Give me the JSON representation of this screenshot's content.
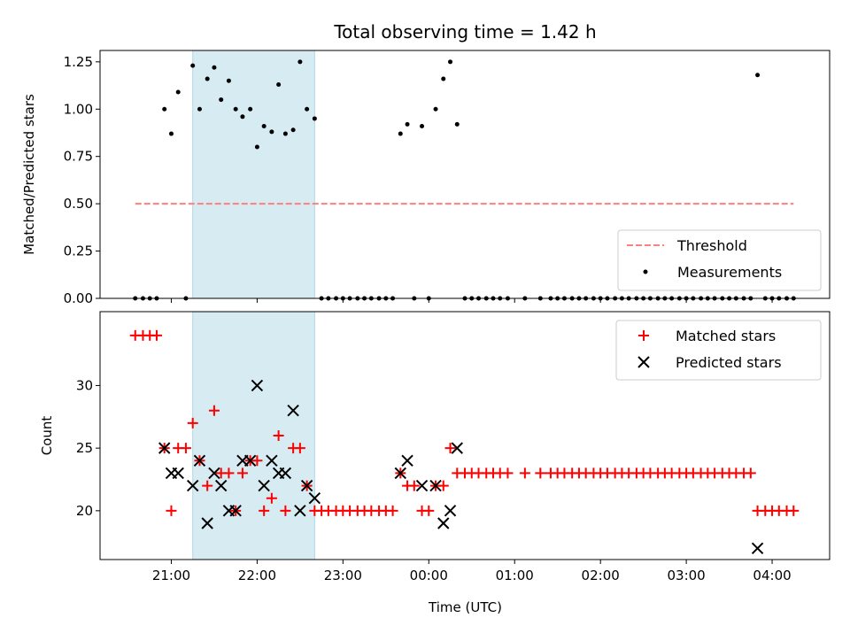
{
  "chart_data": {
    "title": "Total observing time = 1.42 h",
    "xlabel": "Time (UTC)",
    "x_unit": "hours relative to 00:00 UTC",
    "xlim": [
      -3.83,
      4.67
    ],
    "xticks": [
      {
        "value": -3,
        "label": "21:00"
      },
      {
        "value": -2,
        "label": "22:00"
      },
      {
        "value": -1,
        "label": "23:00"
      },
      {
        "value": 0,
        "label": "00:00"
      },
      {
        "value": 1,
        "label": "01:00"
      },
      {
        "value": 2,
        "label": "02:00"
      },
      {
        "value": 3,
        "label": "03:00"
      },
      {
        "value": 4,
        "label": "04:00"
      }
    ],
    "shaded_span": {
      "x0": -2.75,
      "x1": -1.33,
      "color": "#add8e6"
    },
    "top": {
      "type": "scatter",
      "ylabel": "Matched/Predicted stars",
      "ylim": [
        0,
        1.31
      ],
      "yticks": [
        "0.00",
        "0.25",
        "0.50",
        "0.75",
        "1.00",
        "1.25"
      ],
      "threshold": {
        "name": "Threshold",
        "y": 0.5,
        "x0": -3.42,
        "x1": 4.25,
        "color": "#ff7f7f"
      },
      "measurements": {
        "name": "Measurements",
        "color": "#000000",
        "points": [
          [
            -3.42,
            0
          ],
          [
            -3.33,
            0
          ],
          [
            -3.25,
            0
          ],
          [
            -3.17,
            0
          ],
          [
            -3.08,
            1.0
          ],
          [
            -3.0,
            0.87
          ],
          [
            -2.92,
            1.09
          ],
          [
            -2.83,
            0
          ],
          [
            -2.75,
            1.23
          ],
          [
            -2.67,
            1.0
          ],
          [
            -2.58,
            1.16
          ],
          [
            -2.5,
            1.22
          ],
          [
            -2.42,
            1.05
          ],
          [
            -2.33,
            1.15
          ],
          [
            -2.25,
            1.0
          ],
          [
            -2.17,
            0.96
          ],
          [
            -2.08,
            1.0
          ],
          [
            -2.0,
            0.8
          ],
          [
            -1.92,
            0.91
          ],
          [
            -1.83,
            0.88
          ],
          [
            -1.75,
            1.13
          ],
          [
            -1.67,
            0.87
          ],
          [
            -1.58,
            0.89
          ],
          [
            -1.5,
            1.25
          ],
          [
            -1.42,
            1.0
          ],
          [
            -1.33,
            0.95
          ],
          [
            -1.25,
            0
          ],
          [
            -1.17,
            0
          ],
          [
            -1.08,
            0
          ],
          [
            -1.0,
            0
          ],
          [
            -0.92,
            0
          ],
          [
            -0.83,
            0
          ],
          [
            -0.75,
            0
          ],
          [
            -0.67,
            0
          ],
          [
            -0.58,
            0
          ],
          [
            -0.5,
            0
          ],
          [
            -0.42,
            0
          ],
          [
            -0.33,
            0.87
          ],
          [
            -0.25,
            0.92
          ],
          [
            -0.17,
            0
          ],
          [
            -0.08,
            0.91
          ],
          [
            0.0,
            0
          ],
          [
            0.08,
            1.0
          ],
          [
            0.17,
            1.16
          ],
          [
            0.25,
            1.25
          ],
          [
            0.33,
            0.92
          ],
          [
            0.42,
            0
          ],
          [
            0.5,
            0
          ],
          [
            0.58,
            0
          ],
          [
            0.67,
            0
          ],
          [
            0.75,
            0
          ],
          [
            0.83,
            0
          ],
          [
            0.92,
            0
          ],
          [
            1.12,
            0
          ],
          [
            1.3,
            0
          ],
          [
            1.42,
            0
          ],
          [
            1.5,
            0
          ],
          [
            1.58,
            0
          ],
          [
            1.67,
            0
          ],
          [
            1.75,
            0
          ],
          [
            1.83,
            0
          ],
          [
            1.92,
            0
          ],
          [
            2.0,
            0
          ],
          [
            2.08,
            0
          ],
          [
            2.17,
            0
          ],
          [
            2.25,
            0
          ],
          [
            2.33,
            0
          ],
          [
            2.42,
            0
          ],
          [
            2.5,
            0
          ],
          [
            2.58,
            0
          ],
          [
            2.67,
            0
          ],
          [
            2.75,
            0
          ],
          [
            2.83,
            0
          ],
          [
            2.92,
            0
          ],
          [
            3.0,
            0
          ],
          [
            3.08,
            0
          ],
          [
            3.17,
            0
          ],
          [
            3.25,
            0
          ],
          [
            3.33,
            0
          ],
          [
            3.42,
            0
          ],
          [
            3.5,
            0
          ],
          [
            3.58,
            0
          ],
          [
            3.67,
            0
          ],
          [
            3.75,
            0
          ],
          [
            3.83,
            1.18
          ],
          [
            3.92,
            0
          ],
          [
            4.0,
            0
          ],
          [
            4.08,
            0
          ],
          [
            4.17,
            0
          ],
          [
            4.25,
            0
          ]
        ]
      },
      "legend": {
        "position": "lower right",
        "entries": [
          "Threshold",
          "Measurements"
        ]
      }
    },
    "bottom": {
      "type": "scatter",
      "ylabel": "Count",
      "ylim": [
        16.1,
        35.9
      ],
      "yticks": [
        {
          "value": 20,
          "label": "20"
        },
        {
          "value": 25,
          "label": "25"
        },
        {
          "value": 30,
          "label": "30"
        }
      ],
      "matched": {
        "name": "Matched stars",
        "color": "#ff0000",
        "points": [
          [
            -3.42,
            34
          ],
          [
            -3.33,
            34
          ],
          [
            -3.25,
            34
          ],
          [
            -3.17,
            34
          ],
          [
            -3.08,
            25
          ],
          [
            -3.0,
            20
          ],
          [
            -2.92,
            25
          ],
          [
            -2.83,
            25
          ],
          [
            -2.75,
            27
          ],
          [
            -2.67,
            24
          ],
          [
            -2.58,
            22
          ],
          [
            -2.5,
            28
          ],
          [
            -2.42,
            23
          ],
          [
            -2.33,
            23
          ],
          [
            -2.25,
            20
          ],
          [
            -2.17,
            23
          ],
          [
            -2.08,
            24
          ],
          [
            -2.0,
            24
          ],
          [
            -1.92,
            20
          ],
          [
            -1.83,
            21
          ],
          [
            -1.75,
            26
          ],
          [
            -1.67,
            20
          ],
          [
            -1.58,
            25
          ],
          [
            -1.5,
            25
          ],
          [
            -1.42,
            22
          ],
          [
            -1.33,
            20
          ],
          [
            -1.25,
            20
          ],
          [
            -1.17,
            20
          ],
          [
            -1.08,
            20
          ],
          [
            -1.0,
            20
          ],
          [
            -0.92,
            20
          ],
          [
            -0.83,
            20
          ],
          [
            -0.75,
            20
          ],
          [
            -0.67,
            20
          ],
          [
            -0.58,
            20
          ],
          [
            -0.5,
            20
          ],
          [
            -0.42,
            20
          ],
          [
            -0.33,
            23
          ],
          [
            -0.25,
            22
          ],
          [
            -0.17,
            22
          ],
          [
            -0.08,
            20
          ],
          [
            0.0,
            20
          ],
          [
            0.08,
            22
          ],
          [
            0.17,
            22
          ],
          [
            0.25,
            25
          ],
          [
            0.33,
            23
          ],
          [
            0.42,
            23
          ],
          [
            0.5,
            23
          ],
          [
            0.58,
            23
          ],
          [
            0.67,
            23
          ],
          [
            0.75,
            23
          ],
          [
            0.83,
            23
          ],
          [
            0.92,
            23
          ],
          [
            1.12,
            23
          ],
          [
            1.3,
            23
          ],
          [
            1.42,
            23
          ],
          [
            1.5,
            23
          ],
          [
            1.58,
            23
          ],
          [
            1.67,
            23
          ],
          [
            1.75,
            23
          ],
          [
            1.83,
            23
          ],
          [
            1.92,
            23
          ],
          [
            2.0,
            23
          ],
          [
            2.08,
            23
          ],
          [
            2.17,
            23
          ],
          [
            2.25,
            23
          ],
          [
            2.33,
            23
          ],
          [
            2.42,
            23
          ],
          [
            2.5,
            23
          ],
          [
            2.58,
            23
          ],
          [
            2.67,
            23
          ],
          [
            2.75,
            23
          ],
          [
            2.83,
            23
          ],
          [
            2.92,
            23
          ],
          [
            3.0,
            23
          ],
          [
            3.08,
            23
          ],
          [
            3.17,
            23
          ],
          [
            3.25,
            23
          ],
          [
            3.33,
            23
          ],
          [
            3.42,
            23
          ],
          [
            3.5,
            23
          ],
          [
            3.58,
            23
          ],
          [
            3.67,
            23
          ],
          [
            3.75,
            23
          ],
          [
            3.83,
            20
          ],
          [
            3.92,
            20
          ],
          [
            4.0,
            20
          ],
          [
            4.08,
            20
          ],
          [
            4.17,
            20
          ],
          [
            4.25,
            20
          ]
        ]
      },
      "predicted": {
        "name": "Predicted stars",
        "color": "#000000",
        "points": [
          [
            -3.08,
            25
          ],
          [
            -3.0,
            23
          ],
          [
            -2.92,
            23
          ],
          [
            -2.75,
            22
          ],
          [
            -2.67,
            24
          ],
          [
            -2.58,
            19
          ],
          [
            -2.5,
            23
          ],
          [
            -2.42,
            22
          ],
          [
            -2.33,
            20
          ],
          [
            -2.25,
            20
          ],
          [
            -2.17,
            24
          ],
          [
            -2.08,
            24
          ],
          [
            -2.0,
            30
          ],
          [
            -1.92,
            22
          ],
          [
            -1.83,
            24
          ],
          [
            -1.75,
            23
          ],
          [
            -1.67,
            23
          ],
          [
            -1.58,
            28
          ],
          [
            -1.5,
            20
          ],
          [
            -1.42,
            22
          ],
          [
            -1.33,
            21
          ],
          [
            -0.33,
            23
          ],
          [
            -0.25,
            24
          ],
          [
            -0.08,
            22
          ],
          [
            0.08,
            22
          ],
          [
            0.17,
            19
          ],
          [
            0.25,
            20
          ],
          [
            0.33,
            25
          ],
          [
            3.83,
            17
          ]
        ]
      },
      "legend": {
        "position": "upper right",
        "entries": [
          "Matched stars",
          "Predicted stars"
        ]
      }
    }
  }
}
